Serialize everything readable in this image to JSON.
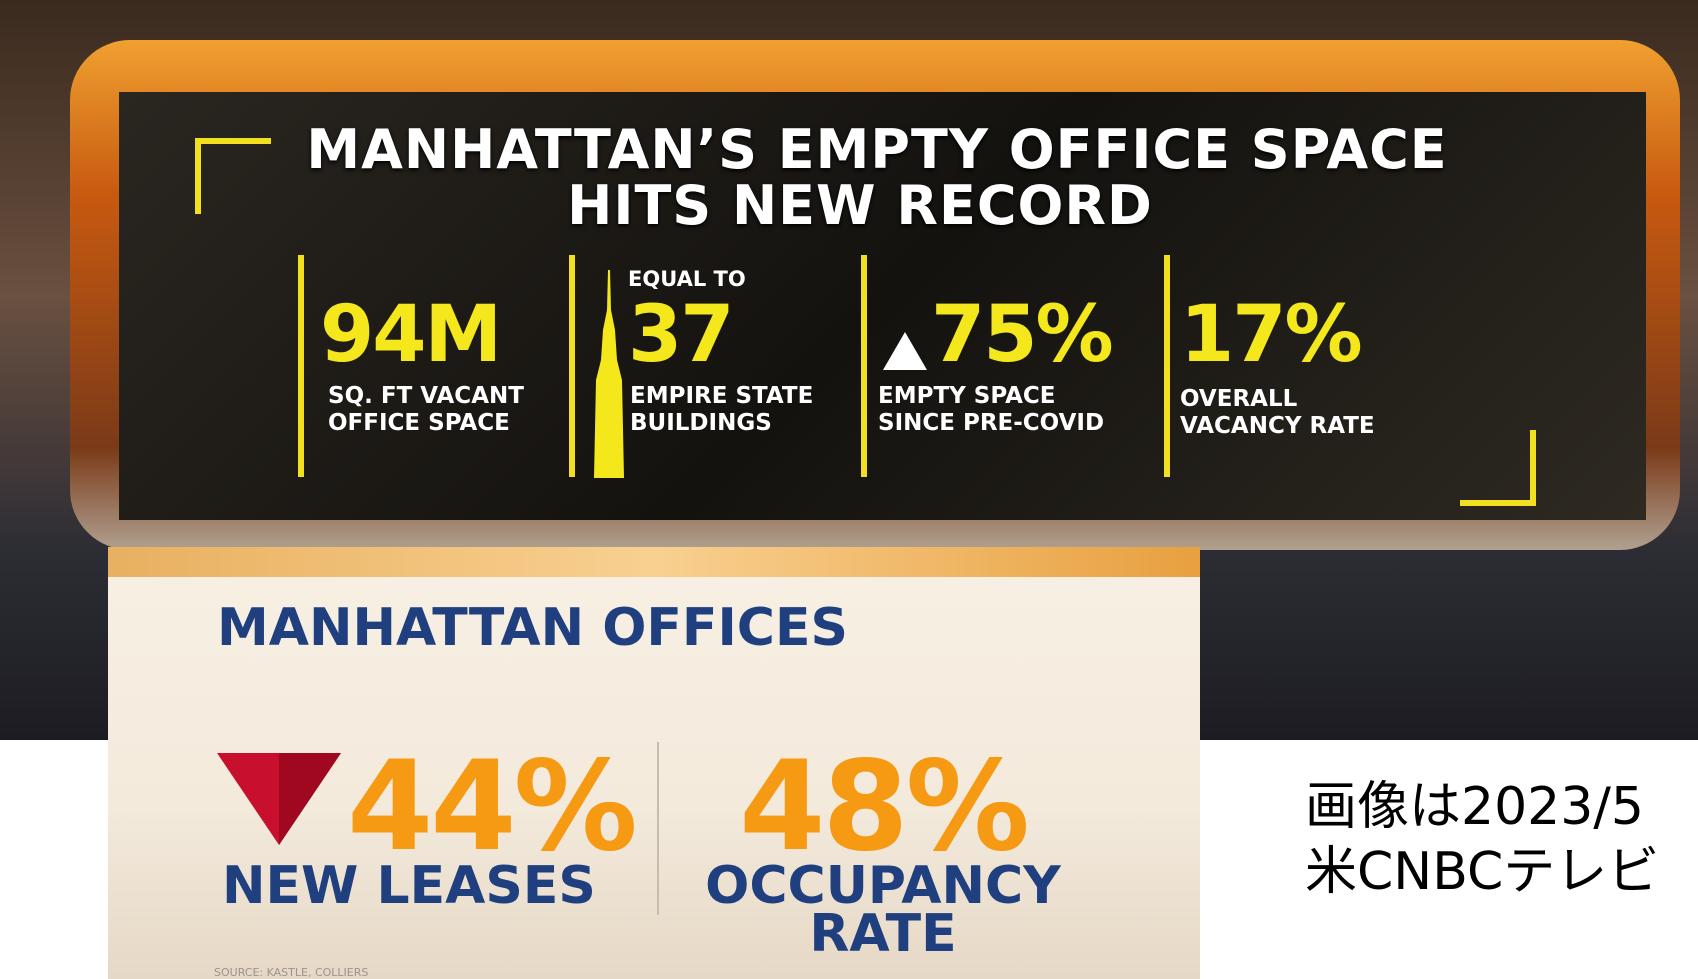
{
  "top_screen": {
    "title": [
      "MANHATTAN’S EMPTY OFFICE SPACE",
      "HITS NEW RECORD"
    ],
    "stats": [
      {
        "value": "94M",
        "label": [
          "SQ. FT VACANT",
          "OFFICE SPACE"
        ]
      },
      {
        "prefix": "EQUAL TO",
        "value": "37",
        "label": [
          "EMPIRE STATE",
          "BUILDINGS"
        ]
      },
      {
        "value": "75%",
        "label": [
          "EMPTY SPACE",
          "SINCE PRE-COVID"
        ]
      },
      {
        "value": "17%",
        "label": [
          "OVERALL",
          "VACANCY RATE"
        ]
      }
    ]
  },
  "bottom_panel": {
    "title": "MANHATTAN OFFICES",
    "stats": [
      {
        "value": "44%",
        "label": [
          "NEW LEASES"
        ]
      },
      {
        "value": "48%",
        "label": [
          "OCCUPANCY",
          "RATE"
        ]
      }
    ],
    "source": "SOURCE: KASTLE, COLLIERS"
  },
  "caption": [
    "画像は2023/5",
    "米CNBCテレビ"
  ]
}
